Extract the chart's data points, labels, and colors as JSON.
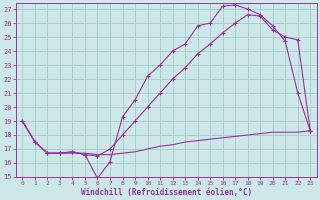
{
  "background_color": "#cce8e8",
  "grid_color": "#aacfcf",
  "line_color": "#993399",
  "marker": "+",
  "xlabel": "Windchill (Refroidissement éolien,°C)",
  "xlim": [
    -0.5,
    23.5
  ],
  "ylim": [
    15,
    27.4
  ],
  "yticks": [
    15,
    16,
    17,
    18,
    19,
    20,
    21,
    22,
    23,
    24,
    25,
    26,
    27
  ],
  "xticks": [
    0,
    1,
    2,
    3,
    4,
    5,
    6,
    7,
    8,
    9,
    10,
    11,
    12,
    13,
    14,
    15,
    16,
    17,
    18,
    19,
    20,
    21,
    22,
    23
  ],
  "line1_x": [
    0,
    1,
    2,
    3,
    4,
    5,
    6,
    7,
    8,
    9,
    10,
    11,
    12,
    13,
    14,
    15,
    16,
    17,
    18,
    19,
    20,
    21,
    22,
    23
  ],
  "line1_y": [
    19.0,
    17.5,
    16.7,
    16.7,
    16.8,
    16.6,
    14.9,
    16.1,
    19.3,
    20.5,
    22.2,
    23.0,
    24.0,
    24.5,
    25.8,
    26.0,
    27.2,
    27.3,
    27.0,
    26.6,
    25.8,
    24.7,
    21.0,
    18.3
  ],
  "line2_x": [
    0,
    1,
    2,
    3,
    4,
    5,
    6,
    7,
    8,
    9,
    10,
    11,
    12,
    13,
    14,
    15,
    16,
    17,
    18,
    19,
    20,
    21,
    22,
    23
  ],
  "line2_y": [
    19.0,
    17.5,
    16.7,
    16.7,
    16.8,
    16.6,
    16.5,
    17.0,
    18.0,
    19.0,
    20.0,
    21.0,
    22.0,
    22.8,
    23.8,
    24.5,
    25.3,
    26.0,
    26.6,
    26.5,
    25.5,
    25.0,
    24.8,
    18.3
  ],
  "line3_x": [
    0,
    1,
    2,
    3,
    4,
    5,
    6,
    7,
    8,
    9,
    10,
    11,
    12,
    13,
    14,
    15,
    16,
    17,
    18,
    19,
    20,
    21,
    22,
    23
  ],
  "line3_y": [
    19.0,
    17.5,
    16.7,
    16.7,
    16.7,
    16.7,
    16.6,
    16.6,
    16.7,
    16.8,
    17.0,
    17.2,
    17.3,
    17.5,
    17.6,
    17.7,
    17.8,
    17.9,
    18.0,
    18.1,
    18.2,
    18.2,
    18.2,
    18.3
  ]
}
